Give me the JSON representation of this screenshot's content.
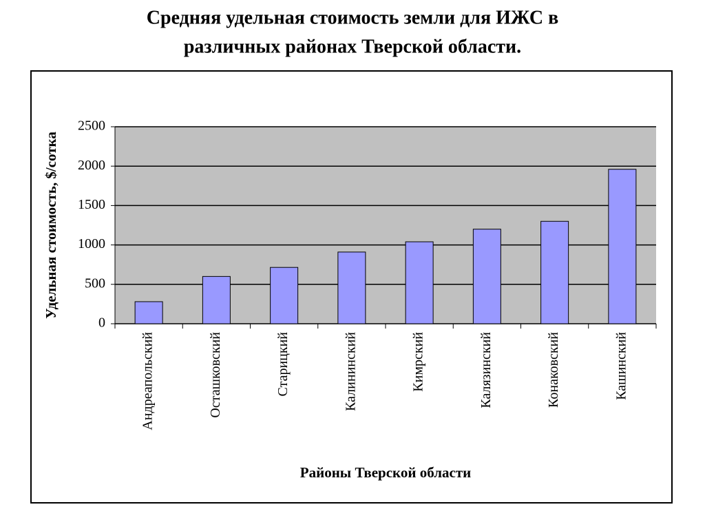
{
  "chart_data": {
    "type": "bar",
    "title": [
      "Средняя удельная стоимость земли для ИЖС в",
      "различных районах Тверской области."
    ],
    "x_label": "Районы Тверской области",
    "y_label": "Удельная стоимость, $/сотка",
    "categories": [
      "Андреапольский",
      "Осташковский",
      "Старицкий",
      "Калининский",
      "Кимрский",
      "Калязинский",
      "Конаковский",
      "Кашинский"
    ],
    "values": [
      280,
      600,
      715,
      910,
      1040,
      1200,
      1300,
      1960
    ],
    "color": "#9999ff",
    "ylim": [
      0,
      2500
    ],
    "yticks": [
      0,
      500,
      1000,
      1500,
      2000,
      2500
    ],
    "grid": true
  }
}
